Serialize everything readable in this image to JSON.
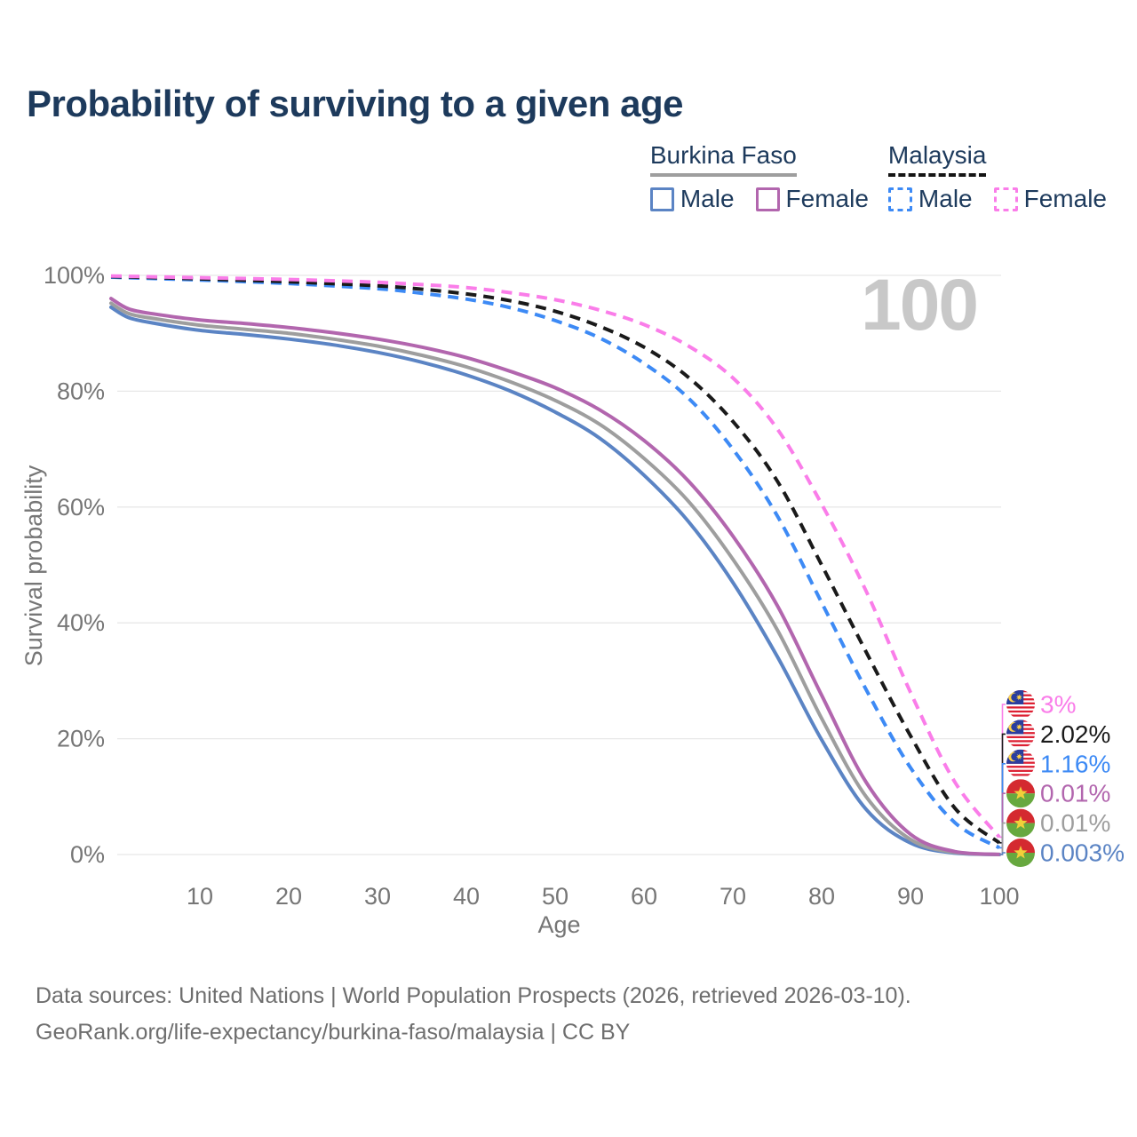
{
  "title": "Probability of surviving to a given age",
  "watermark": "100",
  "legend": {
    "groups": [
      {
        "name": "Burkina Faso",
        "line_style": "solid",
        "line_color": "#9e9e9e",
        "items": [
          {
            "label": "Male",
            "color": "#5b84c4",
            "style": "solid"
          },
          {
            "label": "Female",
            "color": "#b266ae",
            "style": "solid"
          }
        ]
      },
      {
        "name": "Malaysia",
        "line_style": "dashed",
        "line_color": "#141414",
        "items": [
          {
            "label": "Male",
            "color": "#3d8af5",
            "style": "dashed"
          },
          {
            "label": "Female",
            "color": "#fa7de9",
            "style": "dashed"
          }
        ]
      }
    ]
  },
  "chart_data": {
    "type": "line",
    "title": "Probability of surviving to a given age",
    "xlabel": "Age",
    "ylabel": "Survival probability",
    "xlim": [
      0,
      100
    ],
    "ylim": [
      0,
      100
    ],
    "grid": "horizontal",
    "legend_position": "top-right",
    "x_ticks": [
      {
        "value": 10,
        "label": "10"
      },
      {
        "value": 20,
        "label": "20"
      },
      {
        "value": 30,
        "label": "30"
      },
      {
        "value": 40,
        "label": "40"
      },
      {
        "value": 50,
        "label": "50"
      },
      {
        "value": 60,
        "label": "60"
      },
      {
        "value": 70,
        "label": "70"
      },
      {
        "value": 80,
        "label": "80"
      },
      {
        "value": 90,
        "label": "90"
      },
      {
        "value": 100,
        "label": "100"
      }
    ],
    "y_ticks": [
      {
        "value": 0,
        "label": "0%"
      },
      {
        "value": 20,
        "label": "20%"
      },
      {
        "value": 40,
        "label": "40%"
      },
      {
        "value": 60,
        "label": "60%"
      },
      {
        "value": 80,
        "label": "80%"
      },
      {
        "value": 100,
        "label": "100%"
      }
    ],
    "series": [
      {
        "name": "Burkina Faso — Male",
        "country": "Burkina Faso",
        "sex": "Male",
        "color": "#5b84c4",
        "dash": false,
        "end_label": "0.003%",
        "points": [
          [
            0,
            94.5
          ],
          [
            2,
            92.7
          ],
          [
            5,
            91.7
          ],
          [
            10,
            90.5
          ],
          [
            15,
            89.8
          ],
          [
            20,
            89.0
          ],
          [
            25,
            88.0
          ],
          [
            30,
            86.7
          ],
          [
            35,
            85.0
          ],
          [
            40,
            82.8
          ],
          [
            45,
            80.0
          ],
          [
            50,
            76.4
          ],
          [
            55,
            71.9
          ],
          [
            60,
            65.5
          ],
          [
            65,
            57.5
          ],
          [
            70,
            47.0
          ],
          [
            75,
            34.2
          ],
          [
            80,
            19.8
          ],
          [
            85,
            7.8
          ],
          [
            90,
            2.0
          ],
          [
            95,
            0.25
          ],
          [
            100,
            0.003
          ]
        ]
      },
      {
        "name": "Burkina Faso — Both sexes",
        "country": "Burkina Faso",
        "sex": "Both",
        "color": "#9e9e9e",
        "dash": false,
        "end_label": "0.01%",
        "points": [
          [
            0,
            95.2
          ],
          [
            2,
            93.4
          ],
          [
            5,
            92.5
          ],
          [
            10,
            91.4
          ],
          [
            15,
            90.7
          ],
          [
            20,
            90.0
          ],
          [
            25,
            89.0
          ],
          [
            30,
            87.8
          ],
          [
            35,
            86.2
          ],
          [
            40,
            84.2
          ],
          [
            45,
            81.6
          ],
          [
            50,
            78.4
          ],
          [
            55,
            74.3
          ],
          [
            60,
            68.4
          ],
          [
            65,
            61.0
          ],
          [
            70,
            51.0
          ],
          [
            75,
            38.8
          ],
          [
            80,
            23.5
          ],
          [
            85,
            10.0
          ],
          [
            90,
            2.6
          ],
          [
            95,
            0.35
          ],
          [
            100,
            0.01
          ]
        ]
      },
      {
        "name": "Burkina Faso — Female",
        "country": "Burkina Faso",
        "sex": "Female",
        "color": "#b266ae",
        "dash": false,
        "end_label": "0.01%",
        "points": [
          [
            0,
            96.0
          ],
          [
            2,
            94.2
          ],
          [
            5,
            93.3
          ],
          [
            10,
            92.3
          ],
          [
            15,
            91.7
          ],
          [
            20,
            91.0
          ],
          [
            25,
            90.1
          ],
          [
            30,
            89.0
          ],
          [
            35,
            87.6
          ],
          [
            40,
            85.8
          ],
          [
            45,
            83.4
          ],
          [
            50,
            80.6
          ],
          [
            55,
            76.8
          ],
          [
            60,
            71.5
          ],
          [
            65,
            64.5
          ],
          [
            70,
            55.0
          ],
          [
            75,
            43.0
          ],
          [
            80,
            27.5
          ],
          [
            85,
            12.5
          ],
          [
            90,
            3.5
          ],
          [
            95,
            0.5
          ],
          [
            100,
            0.01
          ]
        ]
      },
      {
        "name": "Malaysia — Male",
        "country": "Malaysia",
        "sex": "Male",
        "color": "#3d8af5",
        "dash": true,
        "end_label": "1.16%",
        "points": [
          [
            0,
            99.7
          ],
          [
            10,
            99.2
          ],
          [
            20,
            98.6
          ],
          [
            30,
            97.7
          ],
          [
            35,
            96.9
          ],
          [
            40,
            95.9
          ],
          [
            45,
            94.4
          ],
          [
            50,
            92.2
          ],
          [
            55,
            89.2
          ],
          [
            60,
            84.8
          ],
          [
            65,
            78.8
          ],
          [
            70,
            70.0
          ],
          [
            75,
            58.5
          ],
          [
            80,
            43.5
          ],
          [
            85,
            28.5
          ],
          [
            90,
            15.0
          ],
          [
            95,
            5.5
          ],
          [
            100,
            1.16
          ]
        ]
      },
      {
        "name": "Malaysia — Both sexes",
        "country": "Malaysia",
        "sex": "Both",
        "color": "#1a1a1a",
        "dash": true,
        "end_label": "2.02%",
        "points": [
          [
            0,
            99.8
          ],
          [
            10,
            99.4
          ],
          [
            20,
            98.9
          ],
          [
            30,
            98.2
          ],
          [
            35,
            97.6
          ],
          [
            40,
            96.8
          ],
          [
            45,
            95.6
          ],
          [
            50,
            93.8
          ],
          [
            55,
            91.2
          ],
          [
            60,
            87.6
          ],
          [
            65,
            82.4
          ],
          [
            70,
            74.8
          ],
          [
            75,
            64.5
          ],
          [
            80,
            50.0
          ],
          [
            85,
            35.0
          ],
          [
            90,
            20.5
          ],
          [
            95,
            8.0
          ],
          [
            100,
            2.02
          ]
        ]
      },
      {
        "name": "Malaysia — Female",
        "country": "Malaysia",
        "sex": "Female",
        "color": "#fa7de9",
        "dash": true,
        "end_label": "3%",
        "points": [
          [
            0,
            99.9
          ],
          [
            10,
            99.6
          ],
          [
            20,
            99.3
          ],
          [
            30,
            98.8
          ],
          [
            35,
            98.4
          ],
          [
            40,
            97.9
          ],
          [
            45,
            97.0
          ],
          [
            50,
            95.8
          ],
          [
            55,
            94.0
          ],
          [
            60,
            91.5
          ],
          [
            65,
            87.8
          ],
          [
            70,
            82.3
          ],
          [
            75,
            73.5
          ],
          [
            80,
            60.5
          ],
          [
            85,
            45.5
          ],
          [
            90,
            28.0
          ],
          [
            95,
            12.5
          ],
          [
            100,
            3.0
          ]
        ]
      }
    ]
  },
  "end_labels": [
    {
      "flag": "malaysia",
      "value": "3%",
      "end_value": 3,
      "color": "#fa7de9"
    },
    {
      "flag": "malaysia",
      "value": "2.02%",
      "end_value": 2.02,
      "color": "#1a1a1a"
    },
    {
      "flag": "malaysia",
      "value": "1.16%",
      "end_value": 1.16,
      "color": "#3d8af5"
    },
    {
      "flag": "burkina-faso",
      "value": "0.01%",
      "end_value": 0.01,
      "color": "#b266ae"
    },
    {
      "flag": "burkina-faso",
      "value": "0.01%",
      "end_value": 0.01,
      "color": "#9e9e9e"
    },
    {
      "flag": "burkina-faso",
      "value": "0.003%",
      "end_value": 0.003,
      "color": "#5b84c4"
    }
  ],
  "footer": {
    "line1": "Data sources: United Nations | World Population Prospects (2026, retrieved 2026-03-10).",
    "line2": "GeoRank.org/life-expectancy/burkina-faso/malaysia | CC BY"
  }
}
